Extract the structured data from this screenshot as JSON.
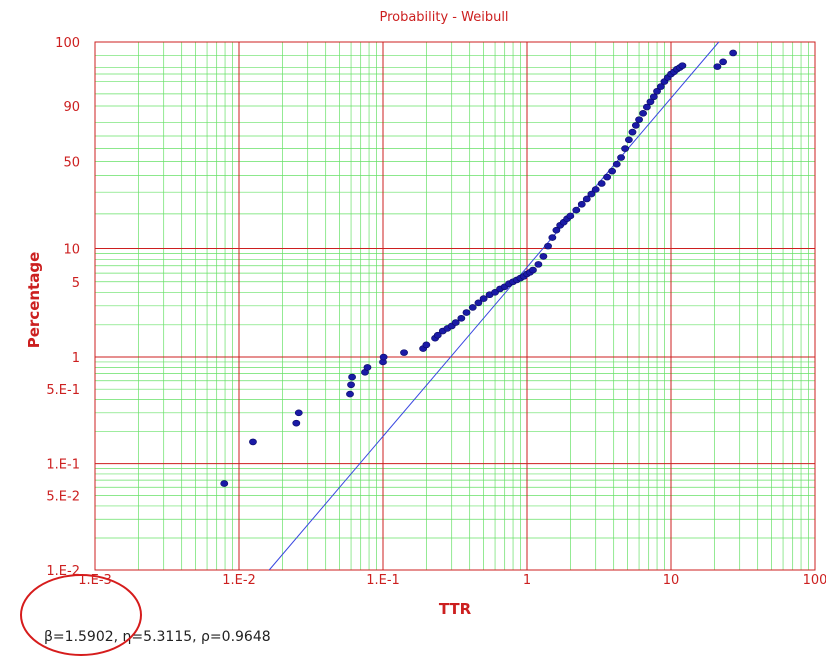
{
  "chart_data": {
    "type": "scatter",
    "title": "Probability - Weibull",
    "xlabel": "TTR",
    "ylabel": "Percentage",
    "x_scale": "log",
    "y_scale": "weibull",
    "xlim": [
      0.001,
      100
    ],
    "ylim": [
      0.01,
      100
    ],
    "x_tick_labels": [
      "1.E-3",
      "1.E-2",
      "1.E-1",
      "1",
      "10",
      "100"
    ],
    "y_tick_labels": [
      {
        "value": 0.01,
        "label": "1.E-2"
      },
      {
        "value": 0.05,
        "label": "5.E-2"
      },
      {
        "value": 0.1,
        "label": "1.E-1"
      },
      {
        "value": 0.5,
        "label": "5.E-1"
      },
      {
        "value": 1,
        "label": "1"
      },
      {
        "value": 5,
        "label": "5"
      },
      {
        "value": 10,
        "label": "10"
      },
      {
        "value": 50,
        "label": "50"
      },
      {
        "value": 90,
        "label": "90"
      },
      {
        "value": 100,
        "label": "100"
      }
    ],
    "grid": true,
    "fit_line": {
      "beta": 1.5902,
      "eta": 5.3115
    },
    "parameters_text": "β=1.5902, η=5.3115, ρ=0.9648",
    "colors": {
      "points": "#1a1aa6",
      "fit_line": "#3a48e0",
      "major_grid": "#cc1f1f",
      "minor_grid": "#66e066",
      "text": "#cc1f1f"
    },
    "series": [
      {
        "x": [
          0.0079,
          0.0125,
          0.025,
          0.026,
          0.059,
          0.06,
          0.061,
          0.075,
          0.078,
          0.1,
          0.101,
          0.14,
          0.19,
          0.2,
          0.23,
          0.24,
          0.26,
          0.28,
          0.3,
          0.32,
          0.35,
          0.38,
          0.42,
          0.46,
          0.5,
          0.55,
          0.6,
          0.65,
          0.7,
          0.75,
          0.8,
          0.85,
          0.9,
          0.95,
          1.0,
          1.05,
          1.1,
          1.2,
          1.3,
          1.4,
          1.5,
          1.6,
          1.7,
          1.8,
          1.9,
          2.0,
          2.2,
          2.4,
          2.6,
          2.8,
          3.0,
          3.3,
          3.6,
          3.9,
          4.2,
          4.5,
          4.8,
          5.1,
          5.4,
          5.7,
          6.0,
          6.4,
          6.8,
          7.2,
          7.6,
          8.0,
          8.5,
          9.0,
          9.5,
          10.0,
          10.5,
          11.0,
          11.5,
          12.0,
          21.0,
          23.0,
          27.0
        ],
        "y": [
          0.065,
          0.16,
          0.24,
          0.3,
          0.45,
          0.55,
          0.65,
          0.72,
          0.8,
          0.9,
          1.0,
          1.1,
          1.2,
          1.3,
          1.5,
          1.6,
          1.75,
          1.85,
          1.95,
          2.1,
          2.3,
          2.6,
          2.9,
          3.2,
          3.5,
          3.8,
          4.0,
          4.3,
          4.5,
          4.8,
          5.0,
          5.2,
          5.4,
          5.6,
          5.9,
          6.1,
          6.4,
          7.2,
          8.5,
          10.5,
          12.5,
          14.5,
          16.0,
          17.0,
          18.2,
          19.2,
          21.5,
          24.0,
          26.5,
          29.0,
          31.5,
          35.0,
          39.0,
          43.0,
          48.0,
          53.0,
          60.0,
          67.0,
          73.0,
          78.0,
          82.0,
          86.0,
          89.5,
          92.0,
          94.0,
          95.8,
          97.0,
          98.0,
          98.6,
          99.0,
          99.2,
          99.4,
          99.5,
          99.6,
          99.55,
          99.75,
          99.93
        ]
      }
    ]
  }
}
